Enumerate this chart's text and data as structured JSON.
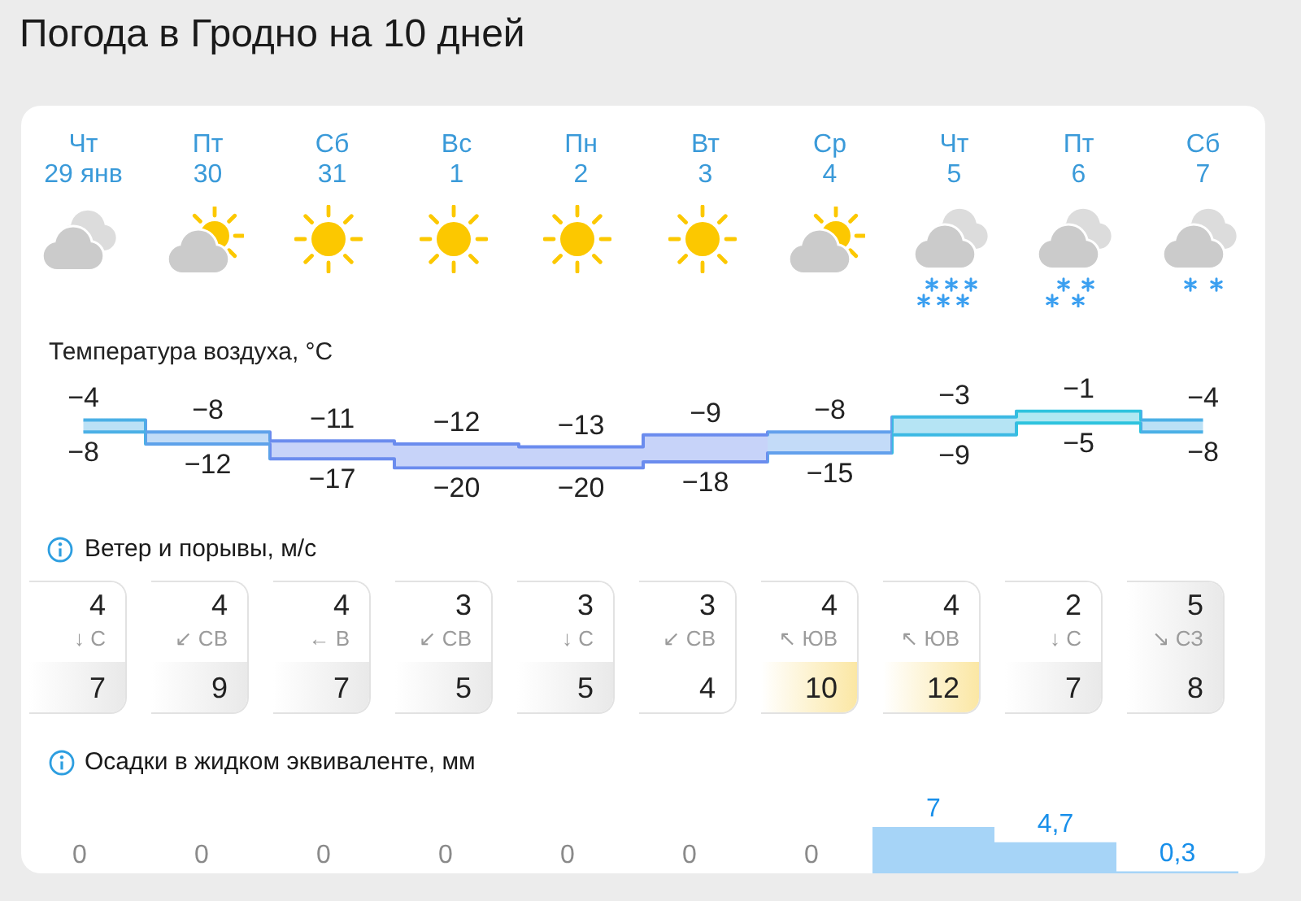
{
  "chart_data": [
    {
      "type": "step",
      "title": "Погода в Гродно на 10 дней",
      "subtitle": "Температура воздуха, °C",
      "categories": [
        "Чт\n29 янв",
        "Пт\n30",
        "Сб\n31",
        "Вс\n1",
        "Пн\n2",
        "Вт\n3",
        "Ср\n4",
        "Чт\n5",
        "Пт\n6",
        "Сб\n7"
      ],
      "series": [
        {
          "values": [
            -4,
            -8,
            -11,
            -12,
            -13,
            -9,
            -8,
            -3,
            -1,
            -4
          ],
          "lower": [
            -8,
            -12,
            -17,
            -20,
            -20,
            -18,
            -15,
            -9,
            -5,
            -8
          ],
          "upper": [
            -4,
            -8,
            -11,
            -12,
            -13,
            -9,
            -8,
            -3,
            -1,
            -4
          ],
          "colors": [
            "#4bb0e6",
            "#5ea2ea",
            "#6b8cee",
            "#6b8cee",
            "#6b8cee",
            "#6b8cee",
            "#62a0ec",
            "#3cb9e3",
            "#2ec3de",
            "#4bb0e6"
          ],
          "value_labels": [
            "−4",
            "−8",
            "−11",
            "−12",
            "−13",
            "−9",
            "−8",
            "−3",
            "−1",
            "−4"
          ]
        },
        {
          "values": [
            -8,
            -12,
            -17,
            -20,
            -20,
            -18,
            -15,
            -9,
            -5,
            -8
          ],
          "colors": [
            "#4bb0e6",
            "#5ea2ea",
            "#6b8cee",
            "#6b8cee",
            "#6b8cee",
            "#6b8cee",
            "#62a0ec",
            "#3cb9e3",
            "#2ec3de",
            "#4bb0e6"
          ],
          "value_labels": [
            "−8",
            "−12",
            "−17",
            "−20",
            "−20",
            "−18",
            "−15",
            "−9",
            "−5",
            "−8"
          ]
        }
      ],
      "tick_labels": "x"
    },
    {
      "type": "other",
      "title": "Ветер и порывы, м/с",
      "categories": [
        "↓ С",
        "↙ СВ",
        "← В",
        "↙ СВ",
        "↓ С",
        "↙ СВ",
        "↖ ЮВ",
        "↖ ЮВ",
        "↓ С",
        "↘ СЗ"
      ],
      "series": [
        {
          "values": [
            4,
            4,
            4,
            3,
            3,
            3,
            4,
            4,
            2,
            5
          ],
          "colors": [
            "#ffffff",
            "#ffffff",
            "#ffffff",
            "#ffffff",
            "#ffffff",
            "#ffffff",
            "#ffffff",
            "#ffffff",
            "#ffffff",
            "#e9e9e9"
          ]
        },
        {
          "values": [
            7,
            9,
            7,
            5,
            5,
            4,
            10,
            12,
            7,
            8
          ],
          "colors": [
            "#e9e9e9",
            "#e9e9e9",
            "#e9e9e9",
            "#e9e9e9",
            "#e9e9e9",
            "#ffffff",
            "#fbe7a4",
            "#fbe7a4",
            "#e9e9e9",
            "#e9e9e9"
          ]
        }
      ],
      "data_labels": true
    },
    {
      "type": "bar",
      "title": "Осадки в жидком эквиваленте, мм",
      "categories": [
        null,
        null,
        null,
        null,
        null,
        null,
        null,
        null,
        null,
        null
      ],
      "values": [
        0,
        0,
        0,
        0,
        0,
        0,
        0,
        7,
        4.7,
        0.3
      ],
      "color": "#a6d4f7",
      "value_labels": [
        "0",
        "0",
        "0",
        "0",
        "0",
        "0",
        "0",
        "7",
        "4,7",
        "0,3"
      ],
      "tick_labels": false
    }
  ]
}
